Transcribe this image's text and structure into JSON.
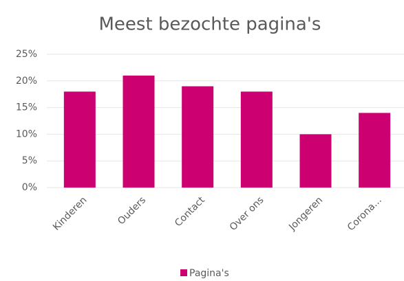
{
  "chart_data": {
    "type": "bar",
    "title": "Meest bezochte pagina's",
    "categories": [
      "Kinderen",
      "Ouders",
      "Contact",
      "Over ons",
      "Jongeren",
      "Corona..."
    ],
    "series": [
      {
        "name": "Pagina's",
        "color": "#cc0070",
        "values": [
          18,
          21,
          19,
          18,
          10,
          14
        ]
      }
    ],
    "ylim": [
      0,
      25
    ],
    "yticks": [
      {
        "value": 0,
        "label": "0%"
      },
      {
        "value": 5,
        "label": "5%"
      },
      {
        "value": 10,
        "label": "10%"
      },
      {
        "value": 15,
        "label": "15%"
      },
      {
        "value": 20,
        "label": "20%"
      },
      {
        "value": 25,
        "label": "25%"
      }
    ],
    "grid": true,
    "legend": "bottom"
  }
}
